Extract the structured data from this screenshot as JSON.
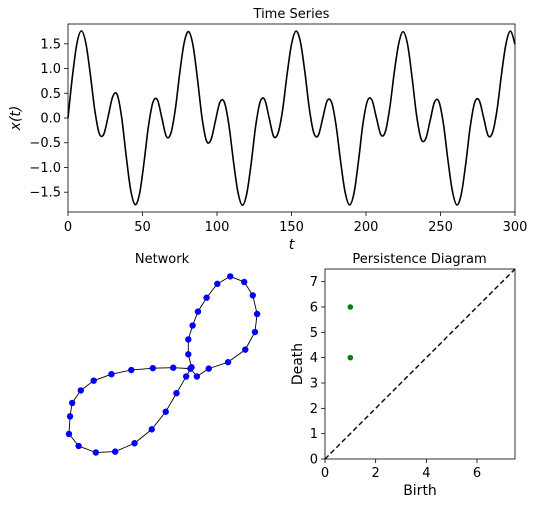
{
  "chart_data": [
    {
      "type": "line",
      "title": "Time Series",
      "xlabel": "t",
      "ylabel": "x(t)",
      "xlim": [
        0,
        300
      ],
      "ylim": [
        -1.9,
        1.9
      ],
      "xticks": [
        0,
        50,
        100,
        150,
        200,
        250,
        300
      ],
      "yticks": [
        -1.5,
        -1.0,
        -0.5,
        0.0,
        0.5,
        1.0,
        1.5
      ],
      "ytick_labels": [
        "−1.5",
        "−1.0",
        "−0.5",
        "0.0",
        "0.5",
        "1.0",
        "1.5"
      ],
      "series": [
        {
          "color": "#000000",
          "x": [
            0,
            3,
            6,
            9,
            12,
            15,
            18,
            21,
            24,
            27,
            30,
            33,
            36,
            39,
            42,
            45,
            48,
            51,
            54,
            57,
            60,
            63,
            66,
            69,
            72,
            75,
            78,
            81,
            84,
            87,
            90,
            93,
            96,
            99,
            102,
            105,
            108,
            111,
            114,
            117,
            120,
            123,
            126,
            129,
            132,
            135,
            138,
            141,
            144,
            147,
            150,
            153,
            156,
            159,
            162,
            165,
            168,
            171,
            174,
            177,
            180,
            183,
            186,
            189,
            192,
            195,
            198,
            201,
            204,
            207,
            210,
            213,
            216,
            219,
            222,
            225,
            228,
            231,
            234,
            237,
            240,
            243,
            246,
            249,
            252,
            255,
            258,
            261,
            264,
            267,
            270,
            273,
            276,
            279,
            282,
            285,
            288,
            291,
            294,
            297,
            300
          ],
          "y": [
            0.0,
            0.851,
            1.509,
            1.761,
            1.508,
            0.879,
            0.153,
            -0.316,
            -0.328,
            0.04,
            0.431,
            0.473,
            0.016,
            -0.755,
            -1.443,
            -1.749,
            -1.534,
            -0.903,
            -0.165,
            0.318,
            0.368,
            0.0,
            -0.372,
            -0.313,
            0.17,
            0.91,
            1.526,
            1.745,
            1.45,
            0.763,
            -0.005,
            -0.467,
            -0.436,
            -0.05,
            0.322,
            0.315,
            -0.144,
            -0.865,
            -1.492,
            -1.762,
            -1.527,
            -0.903,
            -0.153,
            0.329,
            0.371,
            0.002,
            -0.37,
            -0.303,
            0.153,
            0.873,
            1.489,
            1.756,
            1.535,
            0.924,
            0.182,
            -0.304,
            -0.35,
            0.0,
            0.351,
            0.308,
            -0.167,
            -0.888,
            -1.502,
            -1.756,
            -1.51,
            -0.86,
            -0.105,
            0.349,
            0.361,
            0.003,
            -0.34,
            -0.276,
            0.214,
            0.927,
            1.51,
            1.743,
            1.471,
            0.8,
            0.043,
            -0.425,
            -0.425,
            -0.058,
            0.323,
            0.326,
            -0.126,
            -0.853,
            -1.481,
            -1.758,
            -1.531,
            -0.912,
            -0.166,
            0.319,
            0.354,
            0.0,
            -0.357,
            -0.289,
            0.178,
            0.897,
            1.507,
            1.754,
            1.49
          ]
        }
      ]
    },
    {
      "type": "scatter",
      "title": "Network",
      "nodes": [
        [
          -1.72,
          0.02
        ],
        [
          -1.68,
          0.31
        ],
        [
          -1.52,
          0.58
        ],
        [
          -1.28,
          0.79
        ],
        [
          -0.95,
          0.93
        ],
        [
          -0.58,
          1.02
        ],
        [
          -0.18,
          1.06
        ],
        [
          0.2,
          1.07
        ],
        [
          0.52,
          1.05
        ],
        [
          0.64,
          0.88
        ],
        [
          0.86,
          1.05
        ],
        [
          1.22,
          1.19
        ],
        [
          1.54,
          1.46
        ],
        [
          1.72,
          1.84
        ],
        [
          1.76,
          2.23
        ],
        [
          1.68,
          2.63
        ],
        [
          1.52,
          2.92
        ],
        [
          1.26,
          3.04
        ],
        [
          1.02,
          2.88
        ],
        [
          0.82,
          2.58
        ],
        [
          0.66,
          2.28
        ],
        [
          0.56,
          1.98
        ],
        [
          0.48,
          1.68
        ],
        [
          0.48,
          1.36
        ],
        [
          0.54,
          1.08
        ],
        [
          0.44,
          0.88
        ],
        [
          0.26,
          0.52
        ],
        [
          0.06,
          0.12
        ],
        [
          -0.2,
          -0.26
        ],
        [
          -0.52,
          -0.56
        ],
        [
          -0.88,
          -0.74
        ],
        [
          -1.24,
          -0.76
        ],
        [
          -1.56,
          -0.62
        ],
        [
          -1.74,
          -0.36
        ]
      ],
      "xlim": [
        -2.0,
        2.0
      ],
      "ylim": [
        -0.9,
        3.2
      ]
    },
    {
      "type": "scatter",
      "title": "Persistence Diagram",
      "xlabel": "Birth",
      "ylabel": "Death",
      "xlim": [
        0,
        7.5
      ],
      "ylim": [
        0,
        7.5
      ],
      "xticks": [
        0,
        2,
        4,
        6
      ],
      "yticks": [
        0,
        1,
        2,
        3,
        4,
        5,
        6,
        7
      ],
      "points": [
        [
          1,
          6
        ],
        [
          1,
          4
        ]
      ],
      "point_color": "#008000",
      "diagonal": "dashed"
    }
  ]
}
